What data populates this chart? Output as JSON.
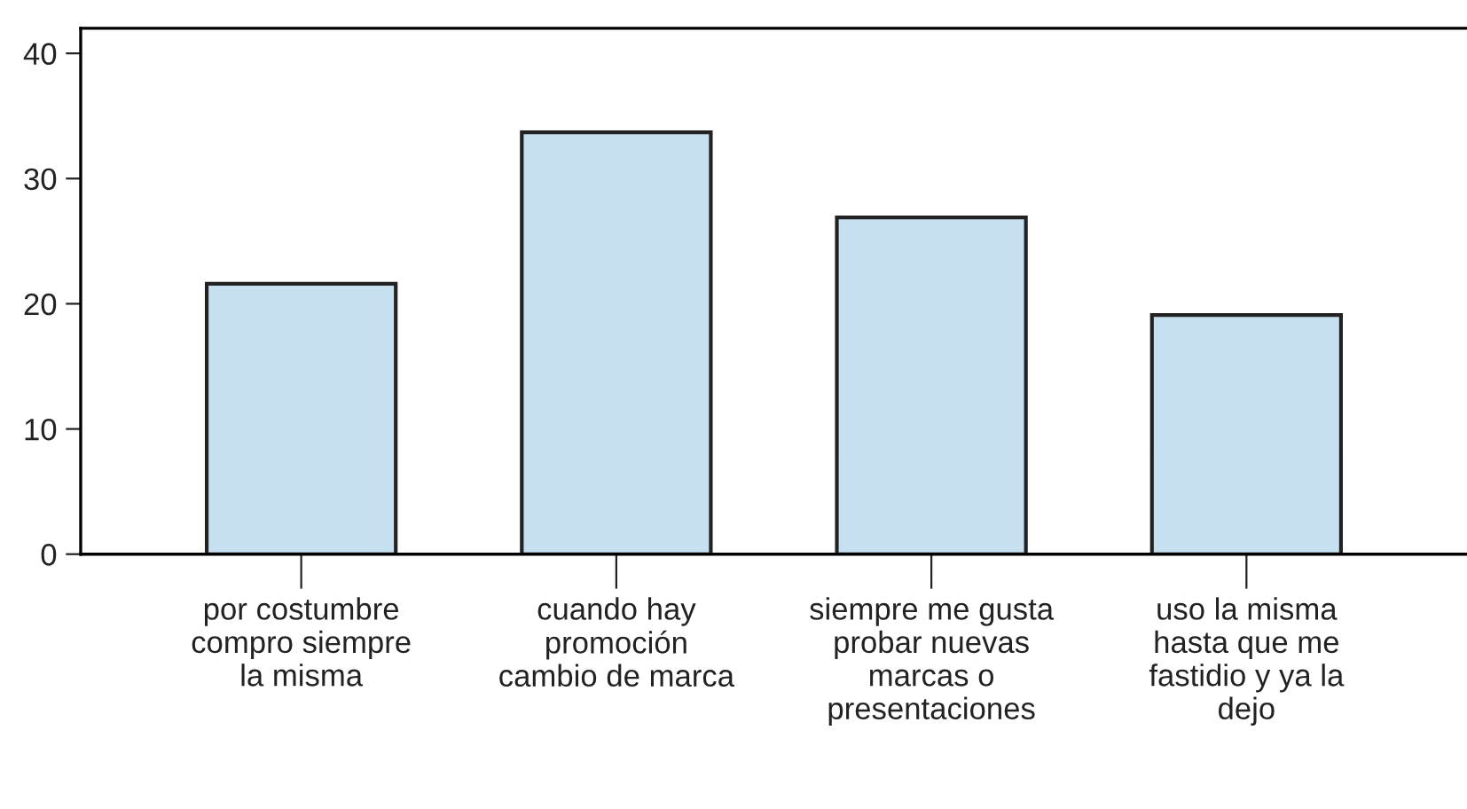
{
  "chart_data": {
    "type": "bar",
    "categories": [
      "por costumbre\ncompro siempre\nla misma",
      "cuando hay\npromoción\ncambio de marca",
      "siempre me gusta\nprobar nuevas\nmarcas o\npresentaciones",
      "uso la misma\nhasta que me\nfastidio y ya la\ndejo"
    ],
    "values": [
      21.6,
      33.7,
      26.9,
      19.1
    ],
    "color": "#c6dff1",
    "ylim": [
      0,
      42
    ],
    "yticks": [
      0,
      10,
      20,
      30,
      40
    ],
    "grid": false
  }
}
